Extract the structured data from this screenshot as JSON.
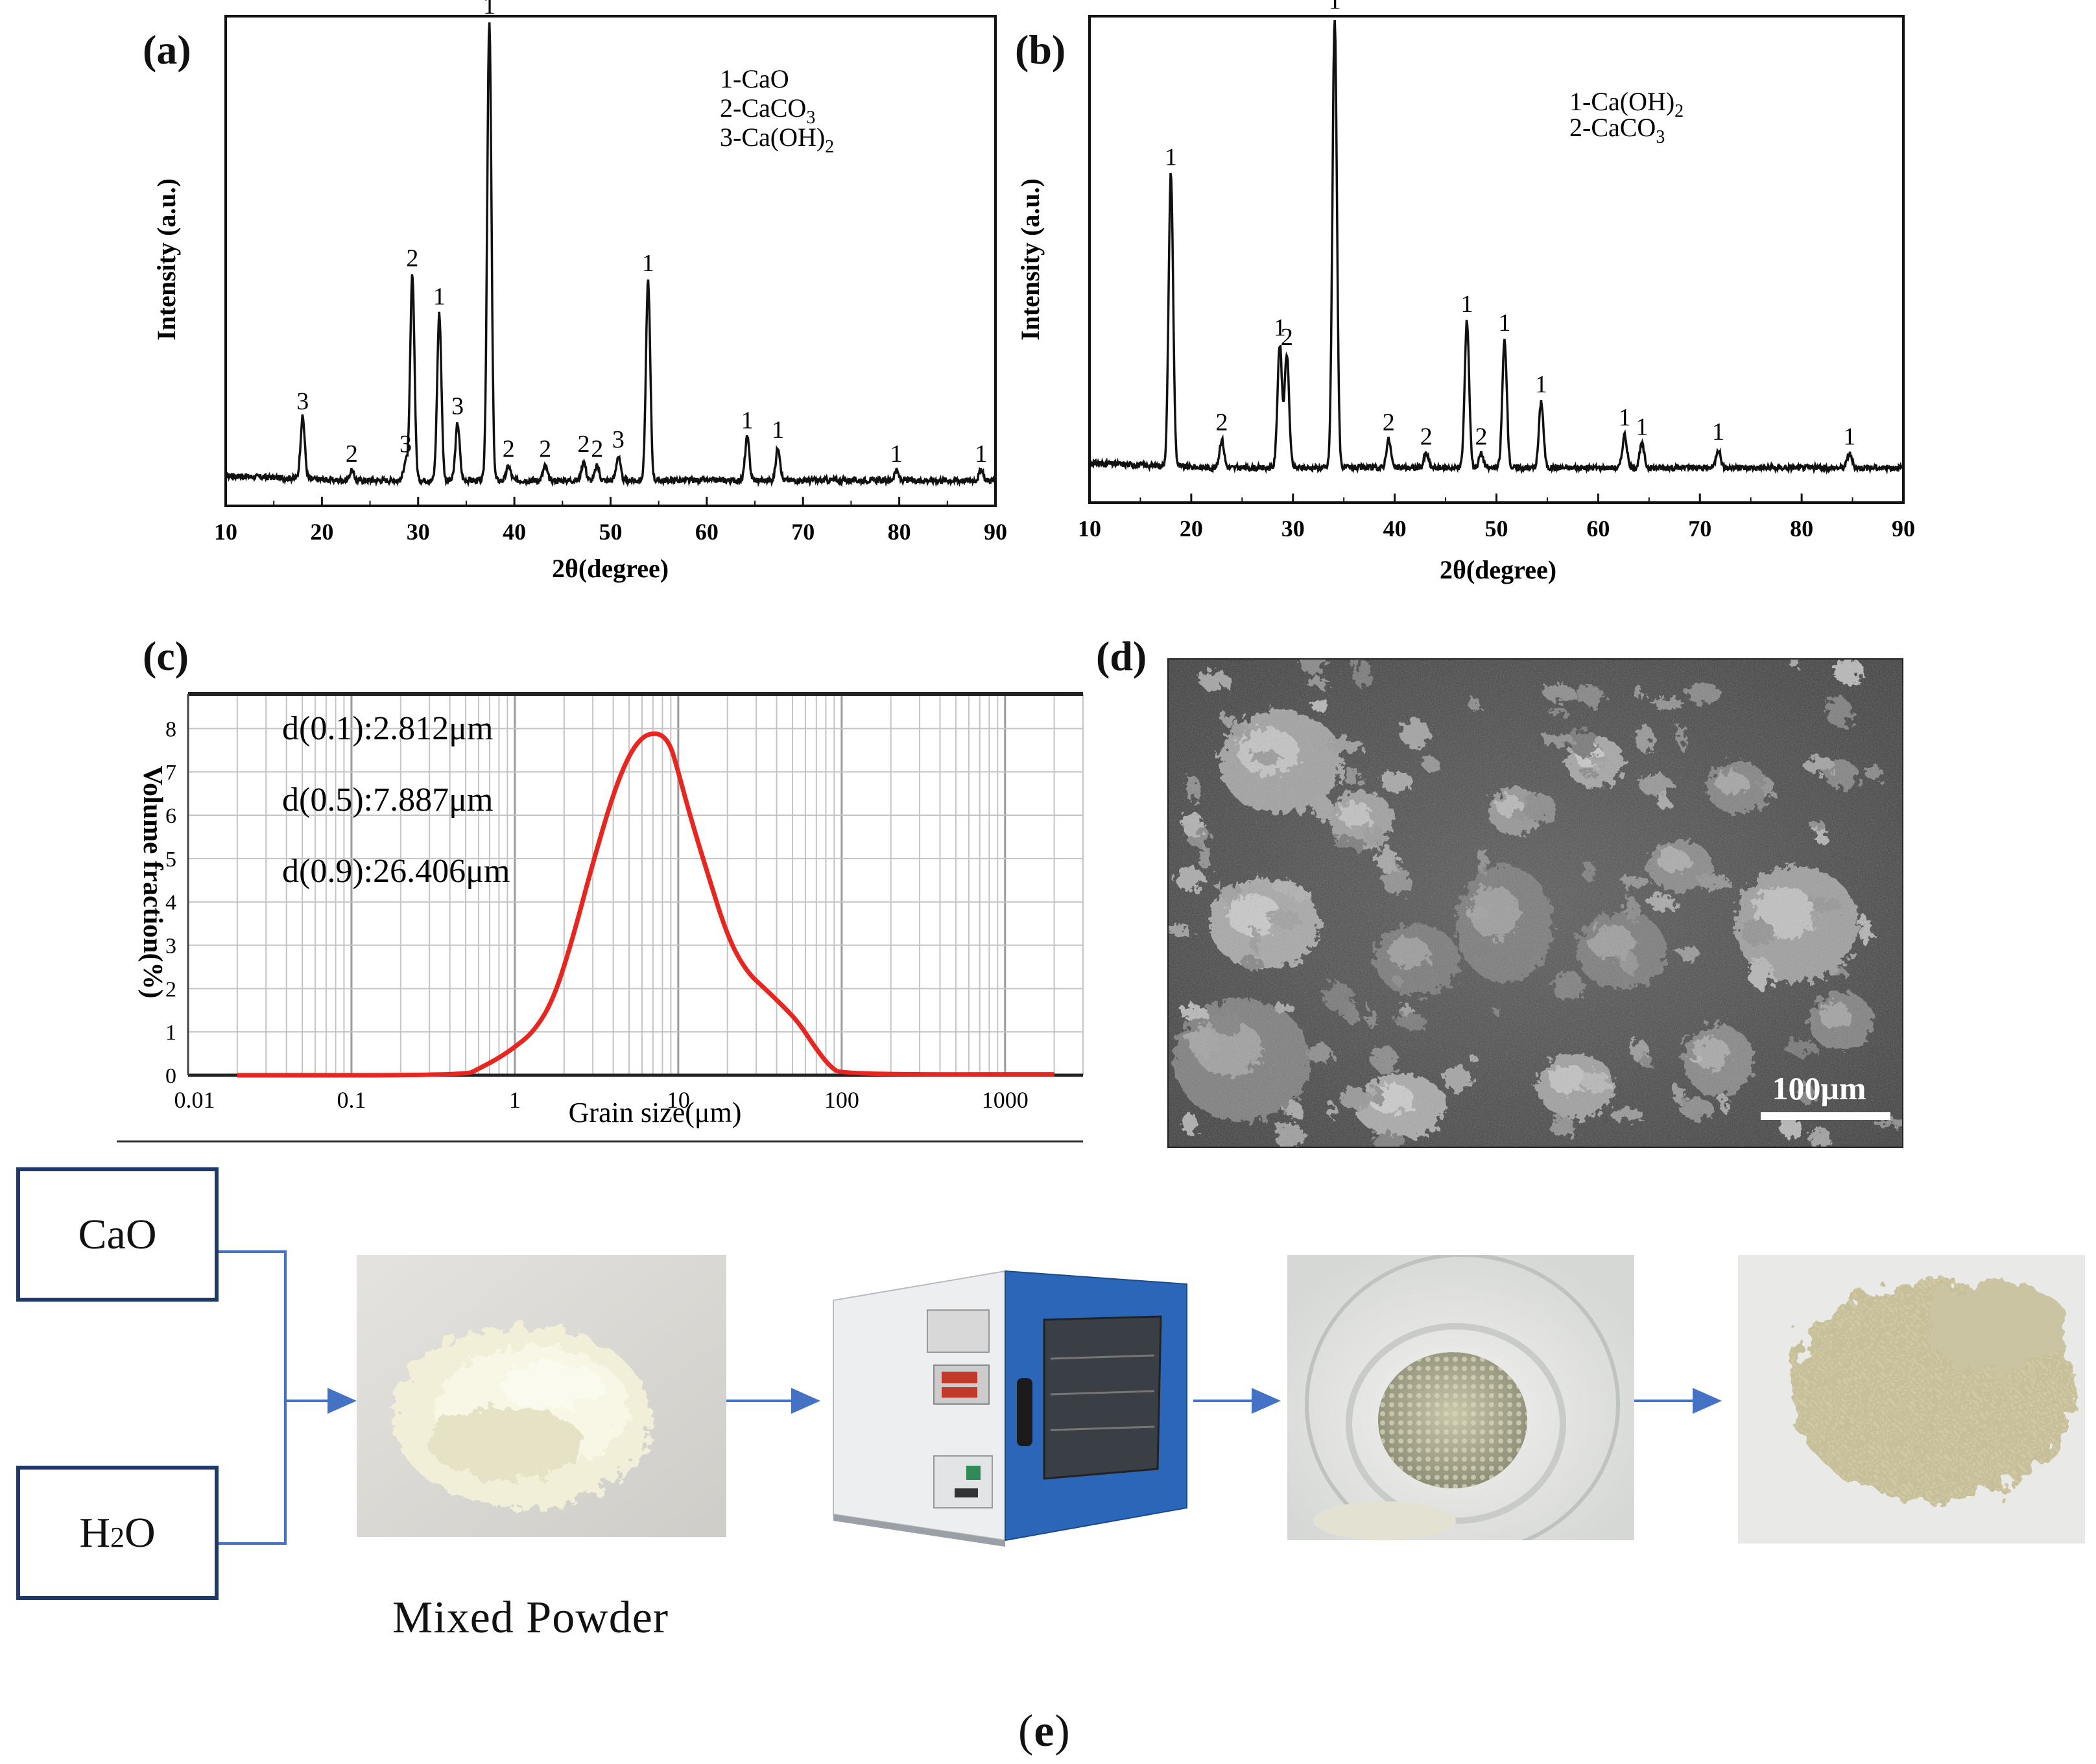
{
  "figure": {
    "panels": [
      {
        "id": "a",
        "label": "(a)",
        "ylabel": "Intensity (a.u.)",
        "xlabel": "2θ(degree)",
        "legend": [
          {
            "text": "1-CaO"
          },
          {
            "text": "2-CaCO",
            "sub": "3"
          },
          {
            "text": "3-Ca(OH)",
            "sub": "2"
          }
        ]
      },
      {
        "id": "b",
        "label": "(b)",
        "ylabel": "Intensity (a.u.)",
        "xlabel": "2θ(degree)",
        "legend": [
          {
            "text": "1-Ca(OH)",
            "sub": "2"
          },
          {
            "text": "2-CaCO",
            "sub": "3"
          }
        ]
      },
      {
        "id": "c",
        "label": "(c)",
        "ylabel": "Volume fraction(%)",
        "xlabel": "Grain size(μm)",
        "annotations": [
          "d(0.1):2.812μm",
          "d(0.5):7.887μm",
          "d(0.9):26.406μm"
        ]
      },
      {
        "id": "d",
        "label": "(d)",
        "scale_bar": "100μm"
      }
    ],
    "process": {
      "label_open": "(",
      "label_letter": "e",
      "label_close": ")",
      "inputs": [
        {
          "text": "CaO"
        },
        {
          "text": "H",
          "sub": "2",
          "tail": "O"
        }
      ],
      "mixed_caption": "Mixed Powder",
      "colors": {
        "box_border": "#1f3a68",
        "arrow": "#4472c4"
      }
    }
  },
  "chart_data": [
    {
      "panel": "a",
      "type": "line",
      "xlabel": "2θ(degree)",
      "ylabel": "Intensity (a.u.)",
      "xlim": [
        10,
        90
      ],
      "xticks": [
        10,
        20,
        30,
        40,
        50,
        60,
        70,
        80,
        90
      ],
      "baseline": 0.04,
      "peaks": [
        {
          "x": 18.0,
          "h": 0.13,
          "label": "3"
        },
        {
          "x": 23.1,
          "h": 0.02,
          "label": "2"
        },
        {
          "x": 28.7,
          "h": 0.04,
          "label": "3"
        },
        {
          "x": 29.4,
          "h": 0.43,
          "label": "2"
        },
        {
          "x": 32.2,
          "h": 0.35,
          "label": "1"
        },
        {
          "x": 34.1,
          "h": 0.12,
          "label": "3"
        },
        {
          "x": 37.4,
          "h": 0.96,
          "label": "1"
        },
        {
          "x": 39.4,
          "h": 0.03,
          "label": "2"
        },
        {
          "x": 43.2,
          "h": 0.03,
          "label": "2"
        },
        {
          "x": 47.2,
          "h": 0.04,
          "label": "2"
        },
        {
          "x": 48.6,
          "h": 0.03,
          "label": "2"
        },
        {
          "x": 50.8,
          "h": 0.05,
          "label": "3"
        },
        {
          "x": 53.9,
          "h": 0.42,
          "label": "1"
        },
        {
          "x": 64.2,
          "h": 0.09,
          "label": "1"
        },
        {
          "x": 67.4,
          "h": 0.07,
          "label": "1"
        },
        {
          "x": 79.7,
          "h": 0.02,
          "label": "1"
        },
        {
          "x": 88.5,
          "h": 0.02,
          "label": "1"
        }
      ]
    },
    {
      "panel": "b",
      "type": "line",
      "xlabel": "2θ(degree)",
      "ylabel": "Intensity (a.u.)",
      "xlim": [
        10,
        90
      ],
      "xticks": [
        10,
        20,
        30,
        40,
        50,
        60,
        70,
        80,
        90
      ],
      "baseline": 0.06,
      "peaks": [
        {
          "x": 18.0,
          "h": 0.62,
          "label": "1"
        },
        {
          "x": 23.0,
          "h": 0.06,
          "label": "2"
        },
        {
          "x": 28.7,
          "h": 0.26,
          "label": "1"
        },
        {
          "x": 29.4,
          "h": 0.24,
          "label": "2"
        },
        {
          "x": 34.1,
          "h": 0.95,
          "label": "1"
        },
        {
          "x": 39.4,
          "h": 0.06,
          "label": "2"
        },
        {
          "x": 43.1,
          "h": 0.03,
          "label": "2"
        },
        {
          "x": 47.1,
          "h": 0.31,
          "label": "1"
        },
        {
          "x": 48.5,
          "h": 0.03,
          "label": "2"
        },
        {
          "x": 50.8,
          "h": 0.27,
          "label": "1"
        },
        {
          "x": 54.4,
          "h": 0.14,
          "label": "1"
        },
        {
          "x": 62.6,
          "h": 0.07,
          "label": "1"
        },
        {
          "x": 64.3,
          "h": 0.05,
          "label": "1"
        },
        {
          "x": 71.8,
          "h": 0.04,
          "label": "1"
        },
        {
          "x": 84.7,
          "h": 0.03,
          "label": "1"
        }
      ]
    },
    {
      "panel": "c",
      "type": "line",
      "xscale": "log",
      "xlim": [
        0.01,
        3000
      ],
      "ylim": [
        0,
        8.5
      ],
      "xlabel": "Grain size(μm)",
      "ylabel": "Volume fraction(%)",
      "xtick_labels": [
        "0.01",
        "0.1",
        "1",
        "10",
        "100",
        "1000"
      ],
      "xtick_values": [
        0.01,
        0.1,
        1,
        10,
        100,
        1000
      ],
      "yticks": [
        0,
        1,
        2,
        3,
        4,
        5,
        6,
        7,
        8
      ],
      "series": [
        {
          "color": "#e8251f",
          "x": [
            0.02,
            0.5,
            0.6,
            0.8,
            1.0,
            1.3,
            1.7,
            2.2,
            3.0,
            4.0,
            5.0,
            6.0,
            7.0,
            8.0,
            9.0,
            10.0,
            12.0,
            15.0,
            20.0,
            26.0,
            35.0,
            45.0,
            55.0,
            70.0,
            85.0,
            100.0,
            2000.0
          ],
          "y": [
            0,
            0,
            0.15,
            0.4,
            0.65,
            1.0,
            1.7,
            3.0,
            4.9,
            6.5,
            7.4,
            7.8,
            7.9,
            7.85,
            7.6,
            7.0,
            5.9,
            4.7,
            3.2,
            2.4,
            1.95,
            1.55,
            1.2,
            0.6,
            0.2,
            0.02,
            0.02
          ]
        }
      ]
    }
  ]
}
